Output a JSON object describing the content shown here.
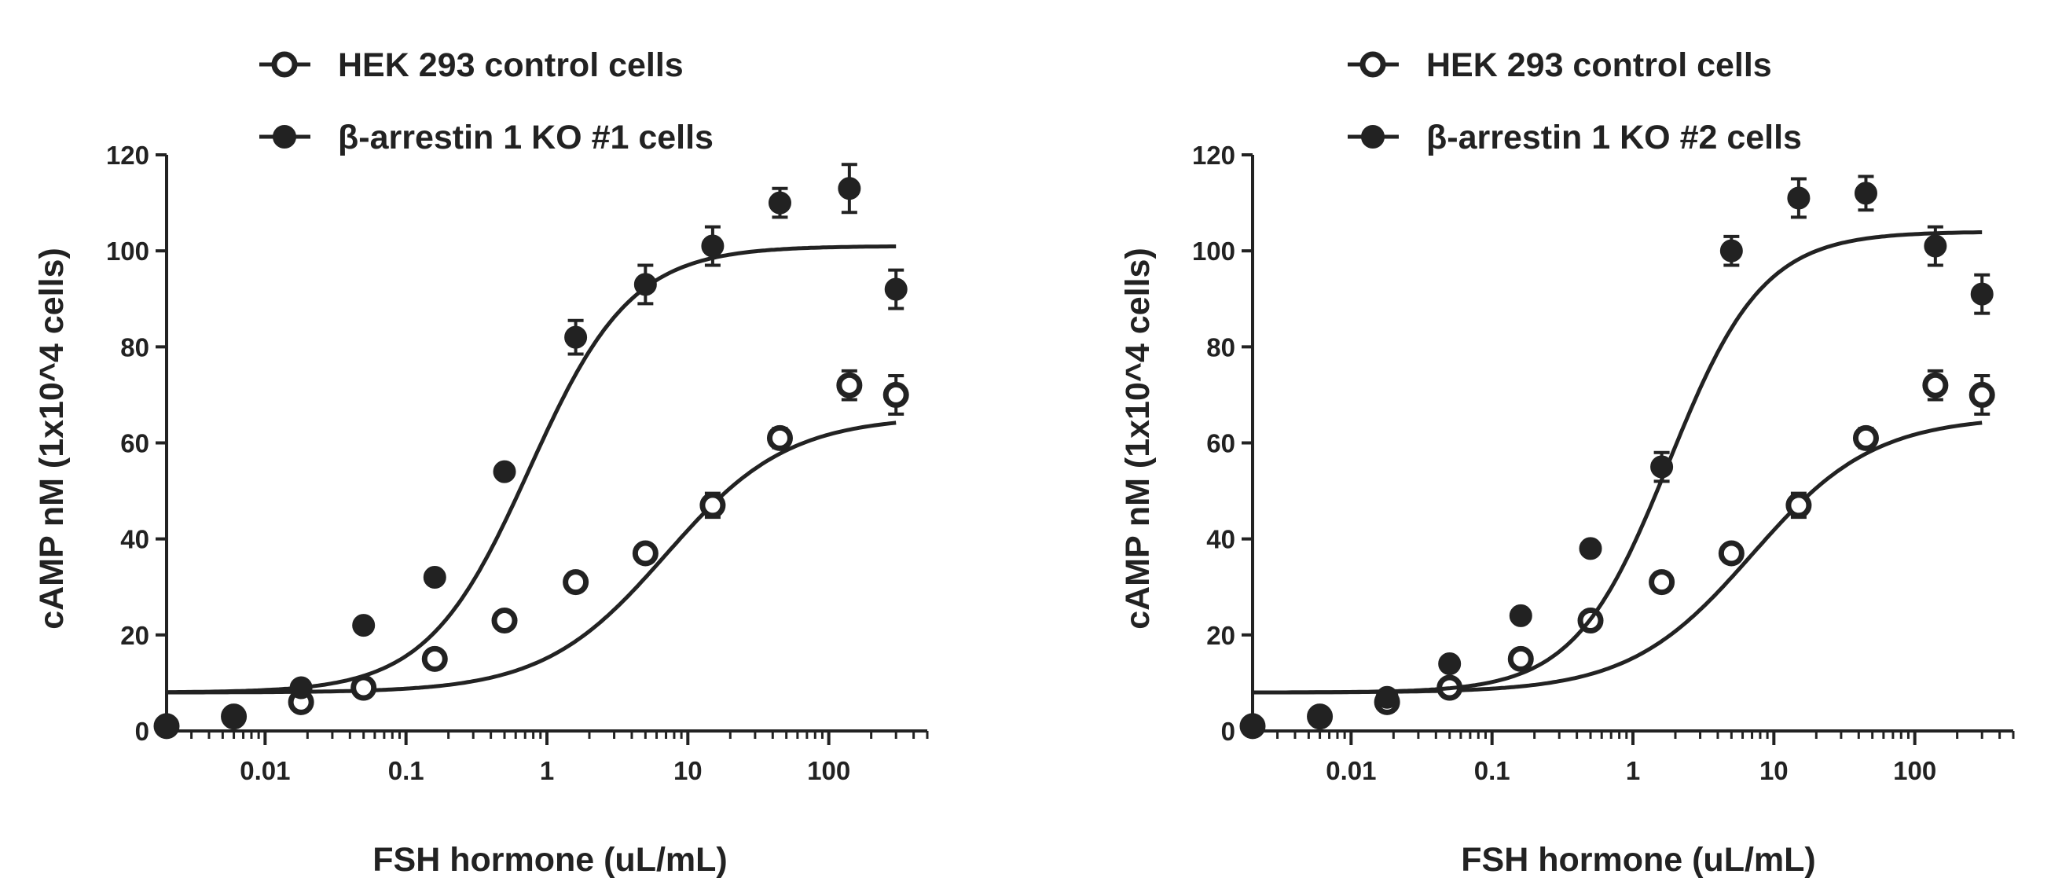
{
  "chart_data": [
    {
      "type": "scatter",
      "title": "",
      "xlabel": "FSH hormone (uL/mL)",
      "ylabel": "cAMP nM (1x10^4 cells)",
      "xscale": "log",
      "xlim": [
        0.002,
        500
      ],
      "ylim": [
        0,
        120
      ],
      "xticks": [
        0.01,
        0.1,
        1,
        10,
        100
      ],
      "xtick_labels": [
        "0.01",
        "0.1",
        "1",
        "10",
        "100"
      ],
      "yticks": [
        0,
        20,
        40,
        60,
        80,
        100,
        120
      ],
      "ytick_labels": [
        "0",
        "20",
        "40",
        "60",
        "80",
        "100",
        "120"
      ],
      "grid": false,
      "legend_position": "top",
      "series": [
        {
          "name": "HEK 293 control cells",
          "marker": "open-circle",
          "color": "#222222",
          "x": [
            0.002,
            0.006,
            0.018,
            0.05,
            0.16,
            0.5,
            1.6,
            5,
            15,
            45,
            140,
            300
          ],
          "y": [
            1,
            3,
            6,
            9,
            15,
            23,
            31,
            37,
            47,
            61,
            72,
            70
          ],
          "err": [
            0,
            0,
            0,
            0,
            0,
            0,
            0,
            0,
            2.5,
            2,
            3,
            4
          ],
          "fit": {
            "bottom": 8,
            "top": 65.5,
            "ec50": 7,
            "hill": 1
          }
        },
        {
          "name": "β-arrestin 1 KO #1 cells",
          "marker": "filled-circle",
          "color": "#222222",
          "x": [
            0.002,
            0.006,
            0.018,
            0.05,
            0.16,
            0.5,
            1.6,
            5,
            15,
            45,
            140,
            300
          ],
          "y": [
            1,
            3,
            9,
            22,
            32,
            54,
            82,
            93,
            101,
            110,
            113,
            92
          ],
          "err": [
            0,
            0,
            0,
            0,
            0,
            0,
            3.5,
            4,
            4,
            3,
            5,
            4
          ],
          "fit": {
            "bottom": 8,
            "top": 101,
            "ec50": 0.75,
            "hill": 1.2
          }
        }
      ]
    },
    {
      "type": "scatter",
      "title": "",
      "xlabel": "FSH hormone (uL/mL)",
      "ylabel": "cAMP nM (1x10^4 cells)",
      "xscale": "log",
      "xlim": [
        0.002,
        500
      ],
      "ylim": [
        0,
        120
      ],
      "xticks": [
        0.01,
        0.1,
        1,
        10,
        100
      ],
      "xtick_labels": [
        "0.01",
        "0.1",
        "1",
        "10",
        "100"
      ],
      "yticks": [
        0,
        20,
        40,
        60,
        80,
        100,
        120
      ],
      "ytick_labels": [
        "0",
        "20",
        "40",
        "60",
        "80",
        "100",
        "120"
      ],
      "grid": false,
      "legend_position": "top",
      "series": [
        {
          "name": "HEK 293 control cells",
          "marker": "open-circle",
          "color": "#222222",
          "x": [
            0.002,
            0.006,
            0.018,
            0.05,
            0.16,
            0.5,
            1.6,
            5,
            15,
            45,
            140,
            300
          ],
          "y": [
            1,
            3,
            6,
            9,
            15,
            23,
            31,
            37,
            47,
            61,
            72,
            70
          ],
          "err": [
            0,
            0,
            0,
            0,
            0,
            0,
            0,
            0,
            2.5,
            2,
            3,
            4
          ],
          "fit": {
            "bottom": 8,
            "top": 65.5,
            "ec50": 7,
            "hill": 1
          }
        },
        {
          "name": "β-arrestin 1 KO #2 cells",
          "marker": "filled-circle",
          "color": "#222222",
          "x": [
            0.002,
            0.006,
            0.018,
            0.05,
            0.16,
            0.5,
            1.6,
            5,
            15,
            45,
            140,
            300
          ],
          "y": [
            1,
            3,
            7,
            14,
            24,
            38,
            55,
            100,
            111,
            112,
            101,
            91
          ],
          "err": [
            0,
            0,
            0,
            0,
            0,
            0,
            3,
            3,
            4,
            3.5,
            4,
            4
          ],
          "fit": {
            "bottom": 8,
            "top": 104,
            "ec50": 1.8,
            "hill": 1.3
          }
        }
      ]
    }
  ]
}
